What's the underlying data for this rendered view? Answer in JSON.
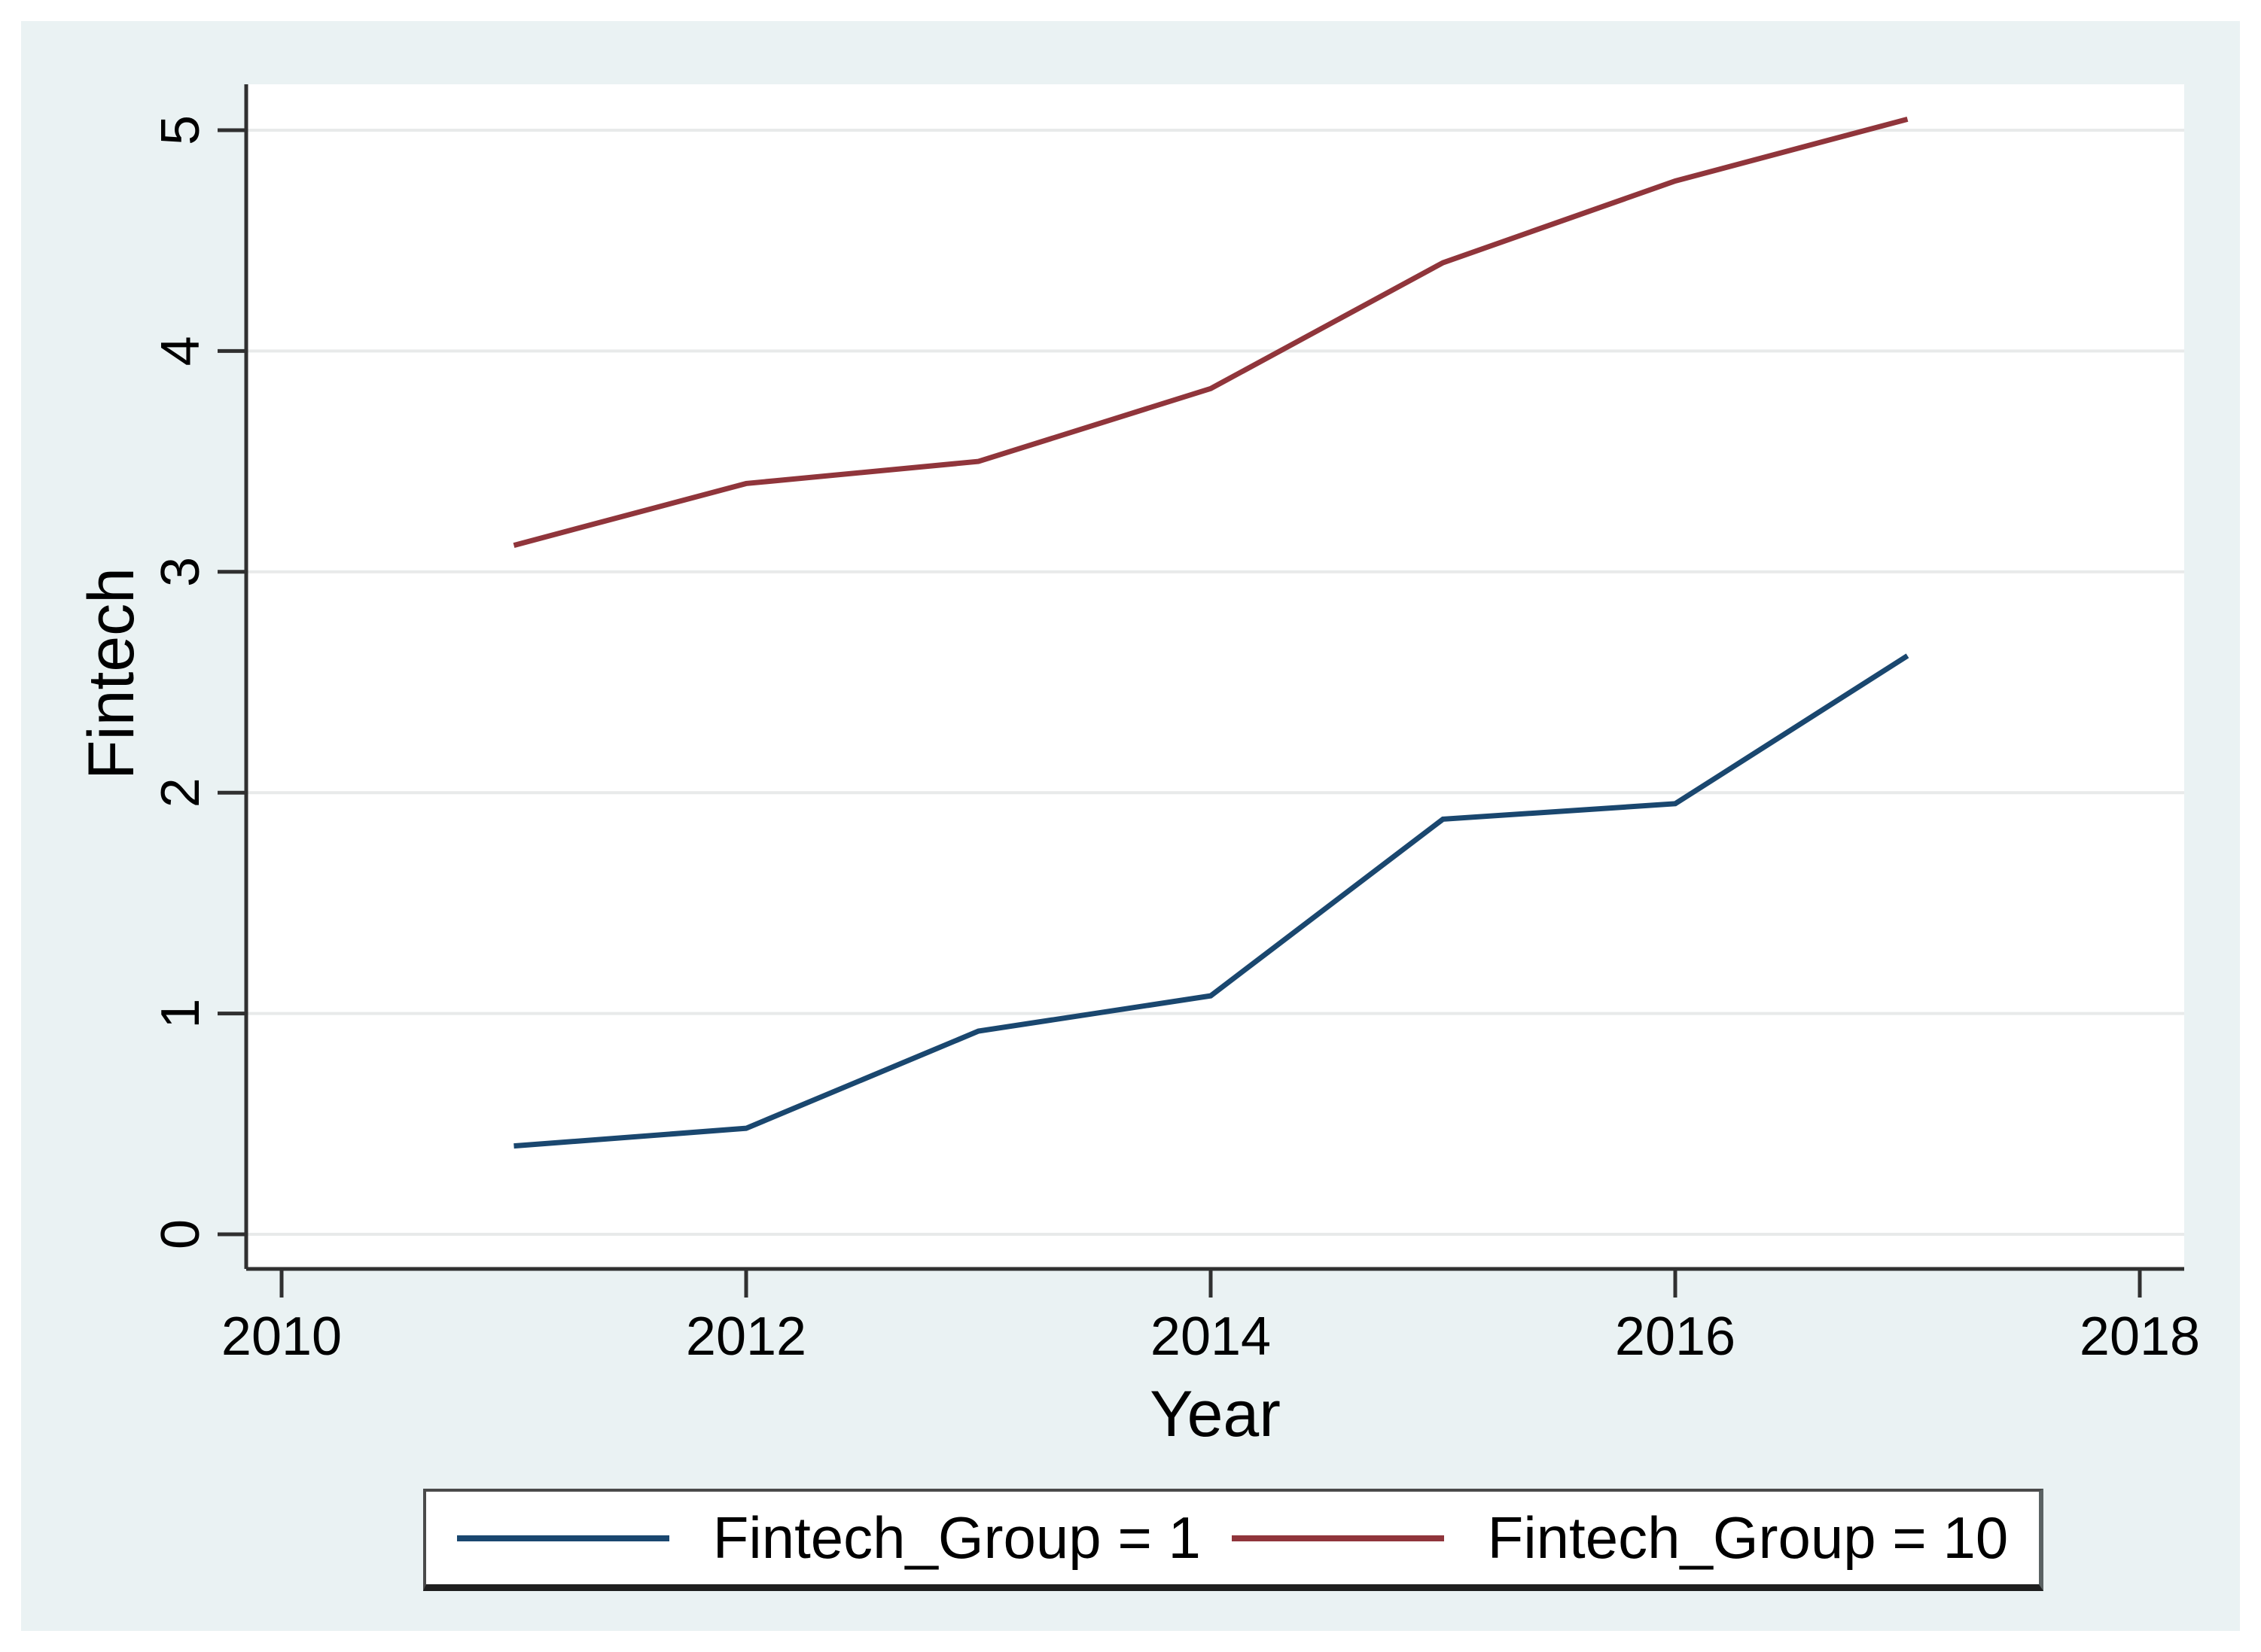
{
  "figure": {
    "background_color": "#eaf2f3",
    "plot_background_color": "#ffffff",
    "grid_color": "#e8eaea",
    "axis_color": "#303030"
  },
  "y_axis": {
    "title": "Fintech",
    "tick_labels": [
      "0",
      "1",
      "2",
      "3",
      "4",
      "5"
    ]
  },
  "x_axis": {
    "title": "Year",
    "tick_labels": [
      "2010",
      "2012",
      "2014",
      "2016",
      "2018"
    ]
  },
  "legend": {
    "entries": [
      {
        "label": "Fintech_Group = 1",
        "color": "#1a476f",
        "swatch": "navy-line"
      },
      {
        "label": "Fintech_Group = 10",
        "color": "#90353b",
        "swatch": "maroon-line"
      }
    ]
  },
  "chart_data": {
    "type": "line",
    "x": [
      2011,
      2012,
      2013,
      2014,
      2015,
      2016,
      2017
    ],
    "series": [
      {
        "name": "Fintech_Group = 1",
        "color": "#1a476f",
        "values": [
          0.4,
          0.48,
          0.92,
          1.08,
          1.88,
          1.95,
          2.62
        ]
      },
      {
        "name": "Fintech_Group = 10",
        "color": "#90353b",
        "values": [
          3.12,
          3.4,
          3.5,
          3.83,
          4.4,
          4.77,
          5.05
        ]
      }
    ],
    "title": "",
    "xlabel": "Year",
    "ylabel": "Fintech",
    "xticks": [
      2010,
      2012,
      2014,
      2016,
      2018
    ],
    "yticks": [
      0,
      1,
      2,
      3,
      4,
      5
    ],
    "xlim": [
      2009.85,
      2018.19
    ],
    "ylim": [
      -0.16,
      5.23
    ],
    "grid": "horizontal-only",
    "legend_position": "bottom-center",
    "line_width": 7
  }
}
